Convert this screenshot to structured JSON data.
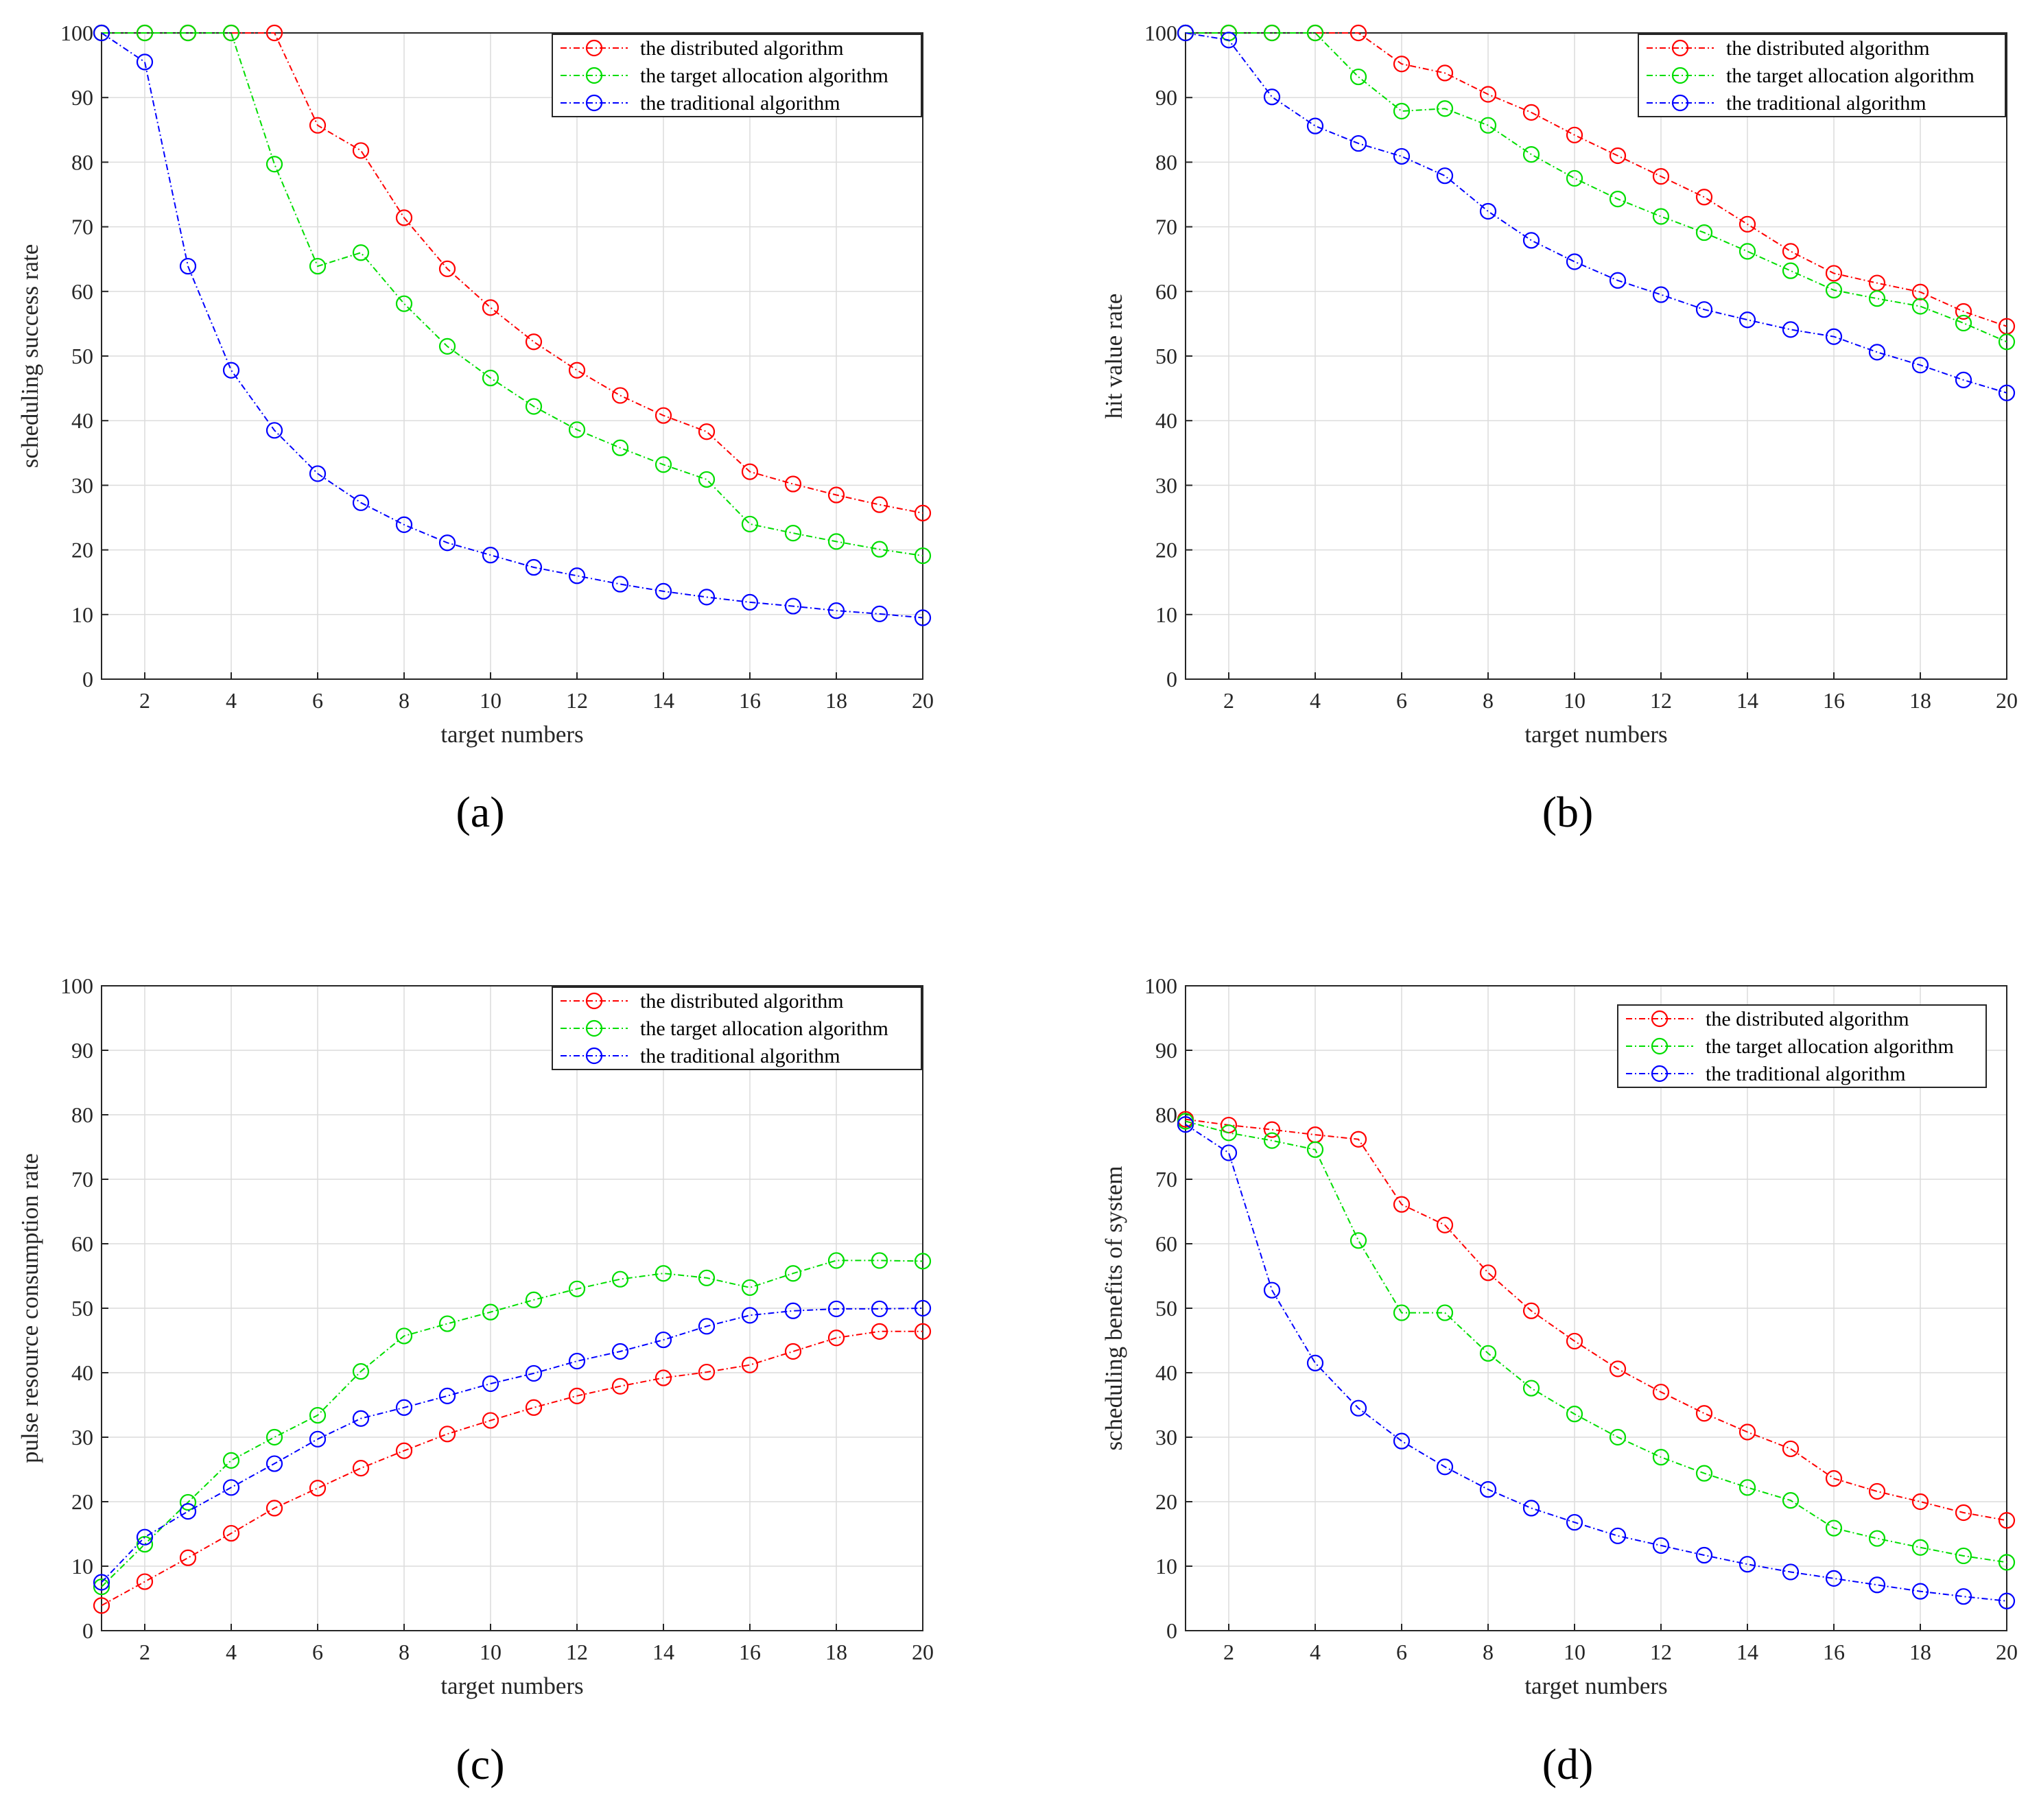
{
  "colors": {
    "distributed": "#ff0000",
    "target_allocation": "#00dd00",
    "traditional": "#0000ff",
    "grid": "#dcdcdc",
    "axis": "#262626"
  },
  "chart_data": [
    {
      "type": "line",
      "panel_label": "(a)",
      "xlabel": "target numbers",
      "ylabel": "scheduling success rate",
      "xlim": [
        1,
        20
      ],
      "ylim": [
        0,
        100
      ],
      "xticks": [
        2,
        4,
        6,
        8,
        10,
        12,
        14,
        16,
        18,
        20
      ],
      "yticks": [
        0,
        10,
        20,
        30,
        40,
        50,
        60,
        70,
        80,
        90,
        100
      ],
      "grid": true,
      "legend_position": "top-right",
      "x": [
        1,
        2,
        3,
        4,
        5,
        6,
        7,
        8,
        9,
        10,
        11,
        12,
        13,
        14,
        15,
        16,
        17,
        18,
        19,
        20
      ],
      "series": [
        {
          "name": "the distributed algorithm",
          "color_key": "distributed",
          "values": [
            100,
            100,
            100,
            100,
            100,
            85.7,
            81.8,
            71.4,
            63.5,
            57.5,
            52.2,
            47.8,
            43.9,
            40.8,
            38.3,
            32.1,
            30.2,
            28.5,
            27.0,
            25.7
          ]
        },
        {
          "name": "the target allocation algorithm",
          "color_key": "target_allocation",
          "values": [
            100,
            100,
            100,
            100,
            79.7,
            63.9,
            66.0,
            58.1,
            51.5,
            46.6,
            42.2,
            38.6,
            35.8,
            33.2,
            30.9,
            24.0,
            22.6,
            21.3,
            20.1,
            19.1
          ]
        },
        {
          "name": "the traditional algorithm",
          "color_key": "traditional",
          "values": [
            100,
            95.5,
            63.9,
            47.8,
            38.5,
            31.8,
            27.3,
            23.9,
            21.1,
            19.2,
            17.3,
            16.0,
            14.7,
            13.6,
            12.7,
            11.9,
            11.3,
            10.6,
            10.1,
            9.5
          ]
        }
      ]
    },
    {
      "type": "line",
      "panel_label": "(b)",
      "xlabel": "target numbers",
      "ylabel": "hit value rate",
      "xlim": [
        1,
        20
      ],
      "ylim": [
        0,
        100
      ],
      "xticks": [
        2,
        4,
        6,
        8,
        10,
        12,
        14,
        16,
        18,
        20
      ],
      "yticks": [
        0,
        10,
        20,
        30,
        40,
        50,
        60,
        70,
        80,
        90,
        100
      ],
      "grid": true,
      "legend_position": "top-right",
      "x": [
        1,
        2,
        3,
        4,
        5,
        6,
        7,
        8,
        9,
        10,
        11,
        12,
        13,
        14,
        15,
        16,
        17,
        18,
        19,
        20
      ],
      "series": [
        {
          "name": "the distributed algorithm",
          "color_key": "distributed",
          "values": [
            100,
            100,
            100,
            100,
            100,
            95.2,
            93.8,
            90.5,
            87.7,
            84.2,
            81.0,
            77.8,
            74.6,
            70.4,
            66.2,
            62.8,
            61.3,
            59.9,
            56.9,
            54.6
          ]
        },
        {
          "name": "the target allocation algorithm",
          "color_key": "target_allocation",
          "values": [
            100,
            100,
            100,
            100,
            93.2,
            87.9,
            88.3,
            85.7,
            81.2,
            77.5,
            74.3,
            71.6,
            69.1,
            66.2,
            63.2,
            60.2,
            58.9,
            57.7,
            55.1,
            52.2
          ]
        },
        {
          "name": "the traditional algorithm",
          "color_key": "traditional",
          "values": [
            100,
            98.9,
            90.1,
            85.6,
            82.9,
            80.9,
            77.9,
            72.4,
            67.9,
            64.6,
            61.7,
            59.5,
            57.2,
            55.6,
            54.1,
            53.0,
            50.6,
            48.6,
            46.3,
            44.3
          ]
        }
      ]
    },
    {
      "type": "line",
      "panel_label": "(c)",
      "xlabel": "target numbers",
      "ylabel": "pulse resource consumption rate",
      "xlim": [
        1,
        20
      ],
      "ylim": [
        0,
        100
      ],
      "xticks": [
        2,
        4,
        6,
        8,
        10,
        12,
        14,
        16,
        18,
        20
      ],
      "yticks": [
        0,
        10,
        20,
        30,
        40,
        50,
        60,
        70,
        80,
        90,
        100
      ],
      "grid": true,
      "legend_position": "top-right",
      "x": [
        1,
        2,
        3,
        4,
        5,
        6,
        7,
        8,
        9,
        10,
        11,
        12,
        13,
        14,
        15,
        16,
        17,
        18,
        19,
        20
      ],
      "series": [
        {
          "name": "the distributed algorithm",
          "color_key": "distributed",
          "values": [
            3.9,
            7.6,
            11.3,
            15.1,
            19.0,
            22.1,
            25.2,
            27.9,
            30.5,
            32.6,
            34.6,
            36.4,
            37.9,
            39.2,
            40.1,
            41.2,
            43.3,
            45.4,
            46.4,
            46.4
          ]
        },
        {
          "name": "the target allocation algorithm",
          "color_key": "target_allocation",
          "values": [
            6.8,
            13.4,
            19.9,
            26.4,
            30.0,
            33.4,
            40.2,
            45.7,
            47.6,
            49.4,
            51.3,
            53.0,
            54.5,
            55.4,
            54.7,
            53.2,
            55.4,
            57.4,
            57.4,
            57.3
          ]
        },
        {
          "name": "the traditional algorithm",
          "color_key": "traditional",
          "values": [
            7.5,
            14.5,
            18.5,
            22.2,
            25.9,
            29.7,
            32.9,
            34.6,
            36.4,
            38.3,
            39.9,
            41.8,
            43.3,
            45.1,
            47.2,
            48.9,
            49.6,
            49.9,
            49.9,
            50.0
          ]
        }
      ]
    },
    {
      "type": "line",
      "panel_label": "(d)",
      "xlabel": "target numbers",
      "ylabel": "scheduling benefits of system",
      "xlim": [
        1,
        20
      ],
      "ylim": [
        0,
        100
      ],
      "xticks": [
        2,
        4,
        6,
        8,
        10,
        12,
        14,
        16,
        18,
        20
      ],
      "yticks": [
        0,
        10,
        20,
        30,
        40,
        50,
        60,
        70,
        80,
        90,
        100
      ],
      "grid": true,
      "legend_position": "top-right",
      "x": [
        1,
        2,
        3,
        4,
        5,
        6,
        7,
        8,
        9,
        10,
        11,
        12,
        13,
        14,
        15,
        16,
        17,
        18,
        19,
        20
      ],
      "series": [
        {
          "name": "the distributed algorithm",
          "color_key": "distributed",
          "values": [
            79.3,
            78.4,
            77.7,
            76.9,
            76.2,
            66.1,
            62.9,
            55.5,
            49.6,
            44.9,
            40.6,
            37.0,
            33.7,
            30.8,
            28.2,
            23.6,
            21.6,
            20.0,
            18.3,
            17.1
          ]
        },
        {
          "name": "the target allocation algorithm",
          "color_key": "target_allocation",
          "values": [
            79.0,
            77.2,
            76.0,
            74.6,
            60.5,
            49.3,
            49.3,
            43.0,
            37.6,
            33.6,
            30.0,
            26.9,
            24.4,
            22.2,
            20.2,
            15.9,
            14.3,
            12.9,
            11.6,
            10.6
          ]
        },
        {
          "name": "the traditional algorithm",
          "color_key": "traditional",
          "values": [
            78.5,
            74.1,
            52.8,
            41.5,
            34.5,
            29.4,
            25.4,
            21.9,
            19.0,
            16.8,
            14.7,
            13.2,
            11.7,
            10.3,
            9.1,
            8.1,
            7.1,
            6.1,
            5.3,
            4.6
          ]
        }
      ]
    }
  ]
}
